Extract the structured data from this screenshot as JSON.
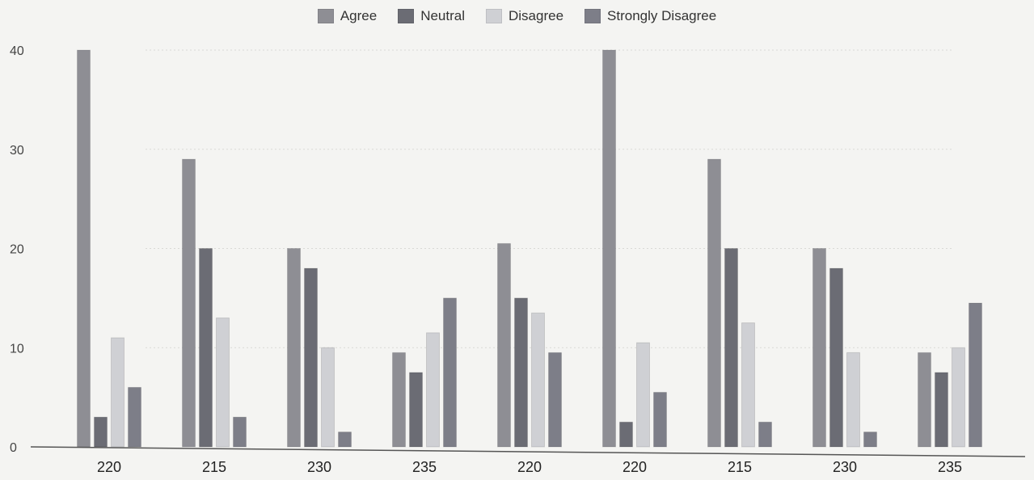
{
  "chart_data": {
    "type": "bar",
    "categories": [
      "220",
      "215",
      "230",
      "235",
      "220",
      "220",
      "215",
      "230",
      "235"
    ],
    "series": [
      {
        "name": "Agree",
        "values": [
          40,
          29,
          20,
          9.5,
          20.5,
          40,
          29,
          20,
          9.5
        ]
      },
      {
        "name": "Neutral",
        "values": [
          3,
          20,
          18,
          7.5,
          15,
          2.5,
          20,
          18,
          7.5
        ]
      },
      {
        "name": "Disagree",
        "values": [
          11,
          13,
          10,
          11.5,
          13.5,
          10.5,
          12.5,
          9.5,
          10
        ]
      },
      {
        "name": "Strongly Disagree",
        "values": [
          6,
          3,
          1.5,
          15,
          9.5,
          5.5,
          2.5,
          1.5,
          14.5
        ]
      }
    ],
    "title": "",
    "xlabel": "",
    "ylabel": "",
    "ylim": [
      0,
      40
    ],
    "yticks": [
      0,
      10,
      20,
      30,
      40
    ],
    "grid": true,
    "legend": "top-center",
    "colors": {
      "Agree": "#8e8e94",
      "Neutral": "#6b6c74",
      "Disagree": "#cfd0d4",
      "Strongly Disagree": "#7d7e88"
    }
  }
}
